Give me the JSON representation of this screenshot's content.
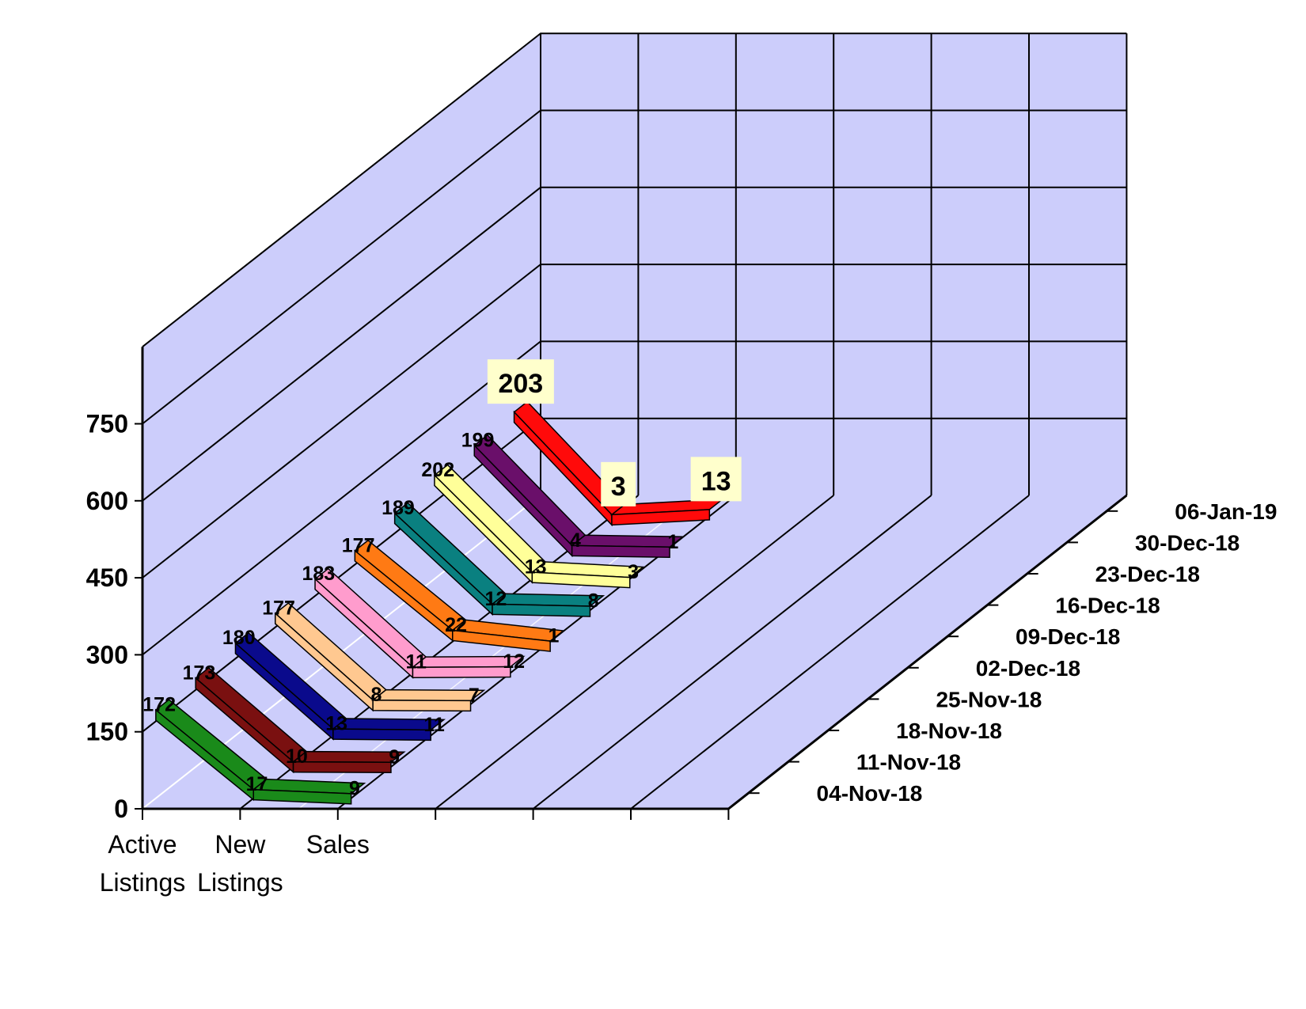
{
  "chart_data": {
    "type": "line",
    "view": "3d",
    "categories": [
      "Active Listings",
      "New Listings",
      "Sales"
    ],
    "y_ticks": [
      "0",
      "150",
      "300",
      "450",
      "600",
      "750"
    ],
    "ylim": [
      0,
      900
    ],
    "grid": true,
    "colors": {
      "wall": "#cccdfb",
      "grid_line": "#000000",
      "diagonal_grid": "#ffffff",
      "label_box": "#ffffcc"
    },
    "series": [
      {
        "name": "04-Nov-18",
        "color": "#1a8a1a",
        "values": [
          172,
          17,
          9
        ]
      },
      {
        "name": "11-Nov-18",
        "color": "#7a1010",
        "values": [
          173,
          10,
          9
        ]
      },
      {
        "name": "18-Nov-18",
        "color": "#0a0a8c",
        "values": [
          180,
          13,
          11
        ]
      },
      {
        "name": "25-Nov-18",
        "color": "#ffc890",
        "values": [
          177,
          8,
          7
        ]
      },
      {
        "name": "02-Dec-18",
        "color": "#ff9ccd",
        "values": [
          183,
          11,
          12
        ]
      },
      {
        "name": "09-Dec-18",
        "color": "#ff7a14",
        "values": [
          177,
          22,
          1
        ]
      },
      {
        "name": "16-Dec-18",
        "color": "#0a8080",
        "values": [
          189,
          12,
          8
        ]
      },
      {
        "name": "23-Dec-18",
        "color": "#ffff99",
        "values": [
          202,
          13,
          3
        ]
      },
      {
        "name": "30-Dec-18",
        "color": "#6a0f6a",
        "values": [
          199,
          4,
          1
        ]
      },
      {
        "name": "06-Jan-19",
        "color": "#ff0a0a",
        "values": [
          203,
          3,
          13
        ],
        "highlight": true
      }
    ]
  }
}
